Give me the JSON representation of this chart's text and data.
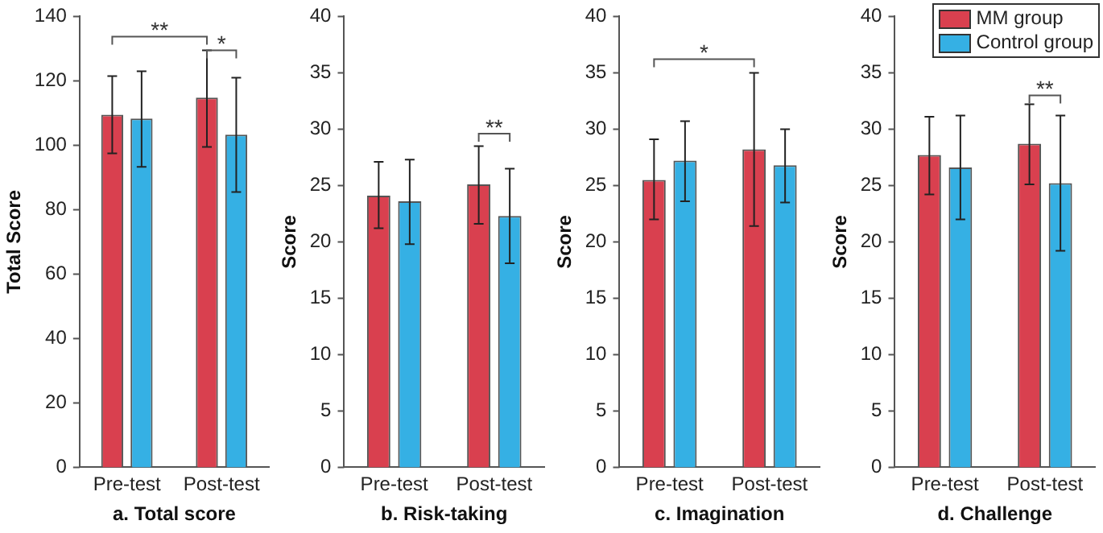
{
  "chart_data": [
    {
      "type": "bar",
      "categories": [
        "Pre-test",
        "Post-test"
      ],
      "xlabel": "a. Total score",
      "ylabel": "Total Score",
      "ylim": [
        0,
        140
      ],
      "yticks": [
        0,
        20,
        40,
        60,
        80,
        100,
        120,
        140
      ],
      "grid": false,
      "legend": false,
      "annotations": [
        "**",
        "*"
      ],
      "series": [
        {
          "color": "#d9404f",
          "values": [
            109.5,
            114.8
          ],
          "errors": [
            [
              97.5,
              121.5
            ],
            [
              99.5,
              129.5
            ]
          ]
        },
        {
          "color": "#35b0e4",
          "values": [
            108.3,
            103.3
          ],
          "errors": [
            [
              93.3,
              123
            ],
            [
              85.5,
              121
            ]
          ]
        }
      ]
    },
    {
      "type": "bar",
      "categories": [
        "Pre-test",
        "Post-test"
      ],
      "xlabel": "b. Risk-taking",
      "ylabel": "Score",
      "ylim": [
        0,
        40
      ],
      "yticks": [
        0,
        5,
        10,
        15,
        20,
        25,
        30,
        35,
        40
      ],
      "grid": false,
      "legend": false,
      "annotations": [
        "**"
      ],
      "series": [
        {
          "color": "#d9404f",
          "values": [
            24.1,
            25.1
          ],
          "errors": [
            [
              21.2,
              27.1
            ],
            [
              21.6,
              28.5
            ]
          ]
        },
        {
          "color": "#35b0e4",
          "values": [
            23.6,
            22.3
          ],
          "errors": [
            [
              19.8,
              27.3
            ],
            [
              18.1,
              26.5
            ]
          ]
        }
      ]
    },
    {
      "type": "bar",
      "categories": [
        "Pre-test",
        "Post-test"
      ],
      "xlabel": "c. Imagination",
      "ylabel": "Score",
      "ylim": [
        0,
        40
      ],
      "yticks": [
        0,
        5,
        10,
        15,
        20,
        25,
        30,
        35,
        40
      ],
      "grid": false,
      "legend": false,
      "annotations": [
        "*"
      ],
      "series": [
        {
          "color": "#d9404f",
          "values": [
            25.5,
            28.2
          ],
          "errors": [
            [
              22,
              29.1
            ],
            [
              21.4,
              35
            ]
          ]
        },
        {
          "color": "#35b0e4",
          "values": [
            27.2,
            26.8
          ],
          "errors": [
            [
              23.6,
              30.7
            ],
            [
              23.5,
              30
            ]
          ]
        }
      ]
    },
    {
      "type": "bar",
      "categories": [
        "Pre-test",
        "Post-test"
      ],
      "xlabel": "d. Challenge",
      "ylabel": "Score",
      "ylim": [
        0,
        40
      ],
      "yticks": [
        0,
        5,
        10,
        15,
        20,
        25,
        30,
        35,
        40
      ],
      "grid": false,
      "legend": "top right",
      "annotations": [
        "**"
      ],
      "series": [
        {
          "name": "MM group",
          "color": "#d9404f",
          "values": [
            27.7,
            28.7
          ],
          "errors": [
            [
              24.2,
              31.1
            ],
            [
              25.1,
              32.2
            ]
          ]
        },
        {
          "name": "Control group",
          "color": "#35b0e4",
          "values": [
            26.6,
            25.2
          ],
          "errors": [
            [
              22,
              31.2
            ],
            [
              19.2,
              31.2
            ]
          ]
        }
      ]
    }
  ]
}
